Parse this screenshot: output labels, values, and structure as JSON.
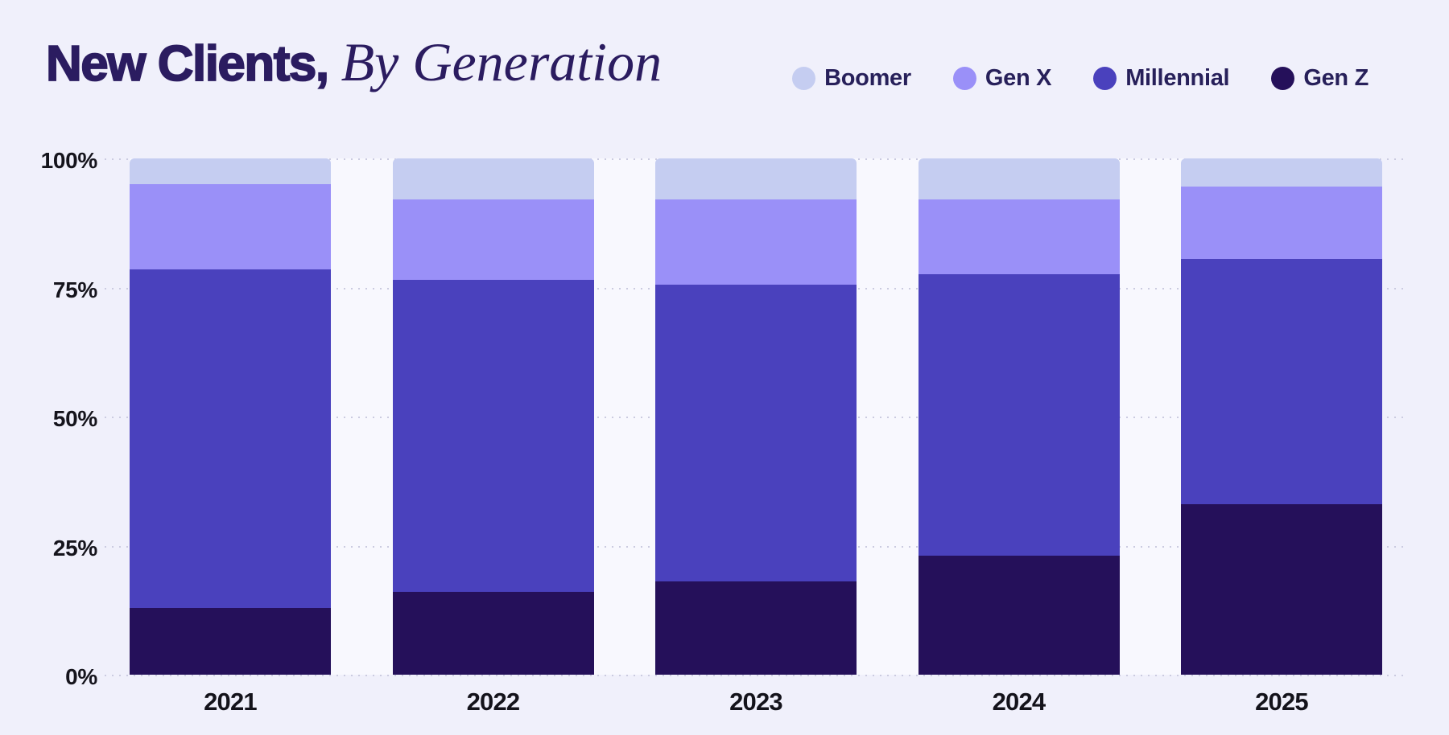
{
  "page": {
    "background_color": "#f0f0fb",
    "plot_column_background": "#f8f8fe",
    "gridline_color": "#cbcbe0",
    "axis_text_color": "#15141c",
    "title_color": "#2b1c60"
  },
  "header": {
    "title_bold": "New Clients,",
    "title_italic": "By Generation"
  },
  "legend": {
    "position": "top-right",
    "items": [
      {
        "label": "Boomer",
        "color": "#c5cdf1"
      },
      {
        "label": "Gen X",
        "color": "#9a90f8"
      },
      {
        "label": "Millennial",
        "color": "#4a41bd"
      },
      {
        "label": "Gen Z",
        "color": "#25105a"
      }
    ]
  },
  "chart_data": {
    "type": "bar",
    "stacked": true,
    "units": "percent",
    "title": "New Clients, By Generation",
    "categories": [
      "2021",
      "2022",
      "2023",
      "2024",
      "2025"
    ],
    "series": [
      {
        "name": "Gen Z",
        "color": "#25105a",
        "values": [
          13,
          16,
          18,
          23,
          33
        ]
      },
      {
        "name": "Millennial",
        "color": "#4a41bd",
        "values": [
          65.5,
          60.5,
          57.5,
          54.5,
          47.5
        ]
      },
      {
        "name": "Gen X",
        "color": "#9a90f8",
        "values": [
          16.5,
          15.5,
          16.5,
          14.5,
          14
        ]
      },
      {
        "name": "Boomer",
        "color": "#c5cdf1",
        "values": [
          5,
          8,
          8,
          8,
          5.5
        ]
      }
    ],
    "stack_order": "bottom-to-top",
    "y_ticks": [
      "100%",
      "75%",
      "50%",
      "25%",
      "0%"
    ],
    "ylim": [
      0,
      100
    ],
    "xlabel": "",
    "ylabel": "",
    "grid": "horizontal-dotted"
  }
}
